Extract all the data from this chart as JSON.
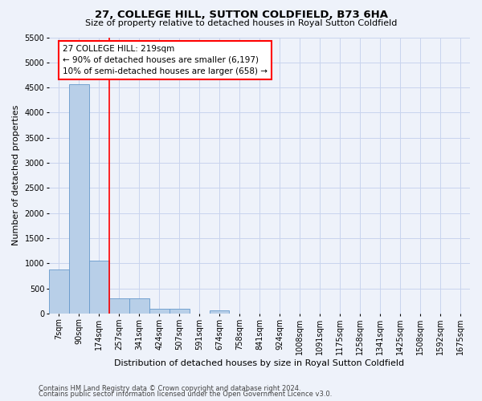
{
  "title": "27, COLLEGE HILL, SUTTON COLDFIELD, B73 6HA",
  "subtitle": "Size of property relative to detached houses in Royal Sutton Coldfield",
  "xlabel": "Distribution of detached houses by size in Royal Sutton Coldfield",
  "ylabel": "Number of detached properties",
  "footnote1": "Contains HM Land Registry data © Crown copyright and database right 2024.",
  "footnote2": "Contains public sector information licensed under the Open Government Licence v3.0.",
  "bin_labels": [
    "7sqm",
    "90sqm",
    "174sqm",
    "257sqm",
    "341sqm",
    "424sqm",
    "507sqm",
    "591sqm",
    "674sqm",
    "758sqm",
    "841sqm",
    "924sqm",
    "1008sqm",
    "1091sqm",
    "1175sqm",
    "1258sqm",
    "1341sqm",
    "1425sqm",
    "1508sqm",
    "1592sqm",
    "1675sqm"
  ],
  "bar_values": [
    880,
    4560,
    1060,
    295,
    295,
    90,
    90,
    0,
    70,
    0,
    0,
    0,
    0,
    0,
    0,
    0,
    0,
    0,
    0,
    0,
    0
  ],
  "bar_color": "#b8cfe8",
  "bar_edge_color": "#6699cc",
  "ylim": [
    0,
    5500
  ],
  "yticks": [
    0,
    500,
    1000,
    1500,
    2000,
    2500,
    3000,
    3500,
    4000,
    4500,
    5000,
    5500
  ],
  "red_line_bin": 2,
  "annotation_text": "27 COLLEGE HILL: 219sqm\n← 90% of detached houses are smaller (6,197)\n10% of semi-detached houses are larger (658) →",
  "annotation_box_color": "white",
  "annotation_box_edge": "red",
  "bg_color": "#eef2fa",
  "grid_color": "#c8d4ee",
  "title_fontsize": 9.5,
  "subtitle_fontsize": 8,
  "axis_label_fontsize": 8,
  "tick_fontsize": 7,
  "footnote_fontsize": 6,
  "annotation_fontsize": 7.5
}
